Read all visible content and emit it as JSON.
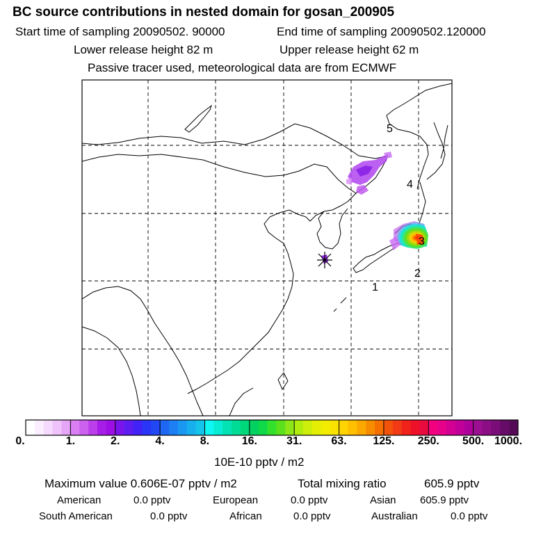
{
  "header": {
    "title": "BC  source contributions in nested domain for gosan_200905",
    "start_time": "Start time of sampling 20090502. 90000",
    "end_time": "End time of sampling 20090502.120000",
    "lower_release": "Lower release height   82 m",
    "upper_release": "Upper release height   62 m",
    "tracer_note": "Passive tracer used, meteorological data are from ECMWF"
  },
  "map": {
    "region_labels": [
      "1",
      "2",
      "3",
      "4",
      "5"
    ],
    "receptor_marker": "star-marker"
  },
  "colorbar": {
    "tick_labels": [
      "0.",
      "1.",
      "2.",
      "4.",
      "8.",
      "16.",
      "31.",
      "63.",
      "125.",
      "250.",
      "500.",
      "1000."
    ],
    "colors": [
      [
        "#ffffff",
        "#fbeefe",
        "#f5dafd",
        "#efc2fb",
        "#e6a6f8"
      ],
      [
        "#d97ff3",
        "#cc60ef",
        "#bb3eea",
        "#a51de6",
        "#9d0fe5"
      ],
      [
        "#7a14ec",
        "#5e1cf0",
        "#4222f6",
        "#2a35f7",
        "#2248f4"
      ],
      [
        "#1e67f3",
        "#1d7ff3",
        "#1a97f1",
        "#17afee",
        "#14c4ea"
      ],
      [
        "#0ff7f3",
        "#08ecd4",
        "#02e2b4",
        "#00db95",
        "#00d77a"
      ],
      [
        "#00d160",
        "#0fd948",
        "#33e12c",
        "#5ce01c",
        "#8de718"
      ],
      [
        "#b1ec0f",
        "#cdee0a",
        "#e4ee04",
        "#f2ec00",
        "#f9e200"
      ],
      [
        "#ffd400",
        "#fec000",
        "#fba800",
        "#f78c00",
        "#f46e00"
      ],
      [
        "#f3520a",
        "#f23b14",
        "#f0221a",
        "#ee1129",
        "#ea0b3e"
      ],
      [
        "#f3007f",
        "#e6008a",
        "#d30093",
        "#c00098",
        "#ae009b"
      ],
      [
        "#9d0f92",
        "#8b0e85",
        "#7a0d78",
        "#660b67",
        "#550a58"
      ]
    ],
    "units": "10E-10 pptv / m2"
  },
  "stats": {
    "max_label": "Maximum value  0.606E-07 pptv / m2",
    "total_label": "Total mixing ratio",
    "total_value": "605.9 pptv",
    "american_label": "American",
    "american_value": "0.0 pptv",
    "european_label": "European",
    "european_value": "0.0 pptv",
    "asian_label": "Asian",
    "asian_value": "605.9 pptv",
    "south_american_label": "South American",
    "south_american_value": "0.0 pptv",
    "african_label": "African",
    "african_value": "0.0 pptv",
    "australian_label": "Australian",
    "australian_value": "0.0 pptv"
  }
}
